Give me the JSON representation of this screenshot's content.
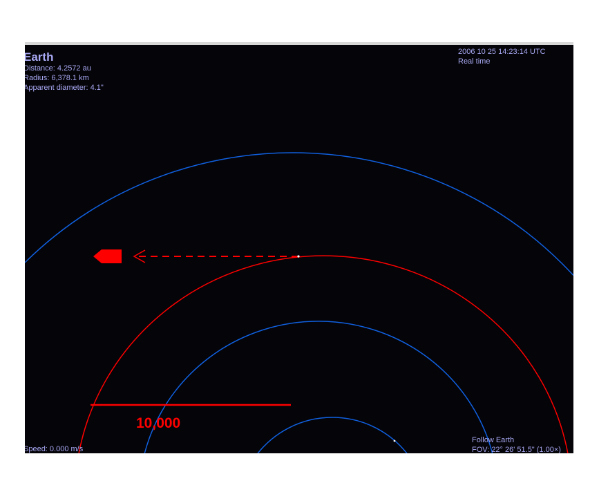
{
  "object": {
    "name": "Earth",
    "distance": "Distance: 4.2572 au",
    "radius": "Radius: 6,378.1 km",
    "apparent_diameter": "Apparent diameter: 4.1\""
  },
  "time": {
    "datetime": "2006 10 25 14:23:14 UTC",
    "rate": "Real time"
  },
  "status": {
    "speed": "Speed: 0.000 m/s",
    "follow": "Follow Earth",
    "fov": "FOV: 22° 26' 51.5\" (1.00×)"
  },
  "scale_bar": {
    "label": "10,000"
  },
  "colors": {
    "background": "#050408",
    "hud_text": "#a9a9f5",
    "orbit_blue": "#1060e0",
    "orbit_red": "#ff0000",
    "marker": "#ff0000"
  },
  "icons": {
    "direction_marker": "spacecraft-arrow-icon"
  }
}
